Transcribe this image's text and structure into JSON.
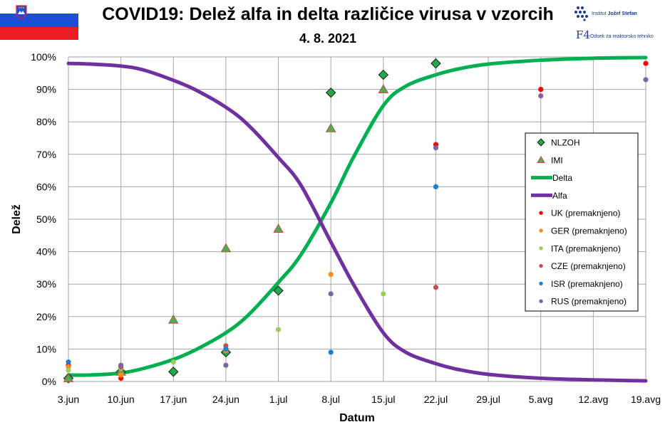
{
  "header": {
    "title": "COVID19: Delež alfa in delta različice virusa v vzorcih",
    "subtitle": "4. 8. 2021"
  },
  "institute": {
    "name_plain": "Institut ",
    "name_bold": "Jožef Stefan",
    "logo_mark": "F4",
    "department": "Odsek za reaktorsko tehniko"
  },
  "colors": {
    "delta": "#00b050",
    "alfa": "#7030a0",
    "nlzoh": "#23a84a",
    "imi": "#4caf50",
    "uk": "#ff0000",
    "ger": "#ff8c1a",
    "ita": "#9acd57",
    "cze": "#c0504d",
    "isr": "#1f7fd4",
    "rus": "#8064a2",
    "grid": "#a6a6a6"
  },
  "chart_data": {
    "type": "scatter+line",
    "title": "COVID19: Delež alfa in delta različice virusa v vzorcih",
    "xlabel": "Datum",
    "ylabel": "Delež",
    "x_unit": "days since 3.jun",
    "xlim": [
      0,
      77
    ],
    "ylim": [
      0,
      100
    ],
    "x_ticks": [
      {
        "x": 0,
        "label": "3.jun"
      },
      {
        "x": 7,
        "label": "10.jun"
      },
      {
        "x": 14,
        "label": "17.jun"
      },
      {
        "x": 21,
        "label": "24.jun"
      },
      {
        "x": 28,
        "label": "1.jul"
      },
      {
        "x": 35,
        "label": "8.jul"
      },
      {
        "x": 42,
        "label": "15.jul"
      },
      {
        "x": 49,
        "label": "22.jul"
      },
      {
        "x": 56,
        "label": "29.jul"
      },
      {
        "x": 63,
        "label": "5.avg"
      },
      {
        "x": 70,
        "label": "12.avg"
      },
      {
        "x": 77,
        "label": "19.avg"
      }
    ],
    "y_ticks": [
      {
        "y": 0,
        "label": "0%"
      },
      {
        "y": 10,
        "label": "10%"
      },
      {
        "y": 20,
        "label": "20%"
      },
      {
        "y": 30,
        "label": "30%"
      },
      {
        "y": 40,
        "label": "40%"
      },
      {
        "y": 50,
        "label": "50%"
      },
      {
        "y": 60,
        "label": "60%"
      },
      {
        "y": 70,
        "label": "70%"
      },
      {
        "y": 80,
        "label": "80%"
      },
      {
        "y": 90,
        "label": "90%"
      },
      {
        "y": 100,
        "label": "100%"
      }
    ],
    "legend_position": "right",
    "series": [
      {
        "name": "NLZOH",
        "kind": "marker",
        "marker": "diamond",
        "color_key": "nlzoh",
        "points": [
          [
            0,
            1
          ],
          [
            7,
            3
          ],
          [
            14,
            3
          ],
          [
            21,
            9
          ],
          [
            28,
            28
          ],
          [
            35,
            89
          ],
          [
            42,
            94.5
          ],
          [
            49,
            98
          ]
        ]
      },
      {
        "name": "IMI",
        "kind": "marker",
        "marker": "triangle",
        "color_key": "imi",
        "points": [
          [
            0,
            1
          ],
          [
            7,
            3
          ],
          [
            14,
            19
          ],
          [
            21,
            41
          ],
          [
            28,
            47
          ],
          [
            35,
            78
          ],
          [
            42,
            90
          ]
        ]
      },
      {
        "name": "Delta",
        "kind": "line",
        "color_key": "delta",
        "points": [
          [
            0,
            2
          ],
          [
            3,
            2
          ],
          [
            7,
            2.6
          ],
          [
            10,
            4
          ],
          [
            14,
            6.8
          ],
          [
            17,
            9.8
          ],
          [
            21,
            15
          ],
          [
            24,
            20.5
          ],
          [
            28,
            30.5
          ],
          [
            31,
            39
          ],
          [
            35,
            55
          ],
          [
            38,
            69
          ],
          [
            42,
            85
          ],
          [
            45,
            91
          ],
          [
            49,
            94.5
          ],
          [
            52,
            96.3
          ],
          [
            56,
            97.8
          ],
          [
            63,
            99
          ],
          [
            70,
            99.6
          ],
          [
            77,
            99.8
          ]
        ]
      },
      {
        "name": "Alfa",
        "kind": "line",
        "color_key": "alfa",
        "points": [
          [
            0,
            98
          ],
          [
            3,
            97.8
          ],
          [
            7,
            97.2
          ],
          [
            10,
            96
          ],
          [
            14,
            92.8
          ],
          [
            17,
            89.8
          ],
          [
            21,
            84.5
          ],
          [
            24,
            79
          ],
          [
            28,
            69
          ],
          [
            31,
            60.5
          ],
          [
            35,
            43
          ],
          [
            38,
            30
          ],
          [
            42,
            15
          ],
          [
            45,
            9
          ],
          [
            49,
            5.5
          ],
          [
            52,
            3.7
          ],
          [
            56,
            2.2
          ],
          [
            63,
            1
          ],
          [
            70,
            0.5
          ],
          [
            77,
            0.2
          ]
        ]
      },
      {
        "name": "UK (premaknjeno)",
        "kind": "marker",
        "marker": "circle",
        "color_key": "uk",
        "points": [
          [
            0,
            5
          ],
          [
            7,
            1
          ],
          [
            21,
            10
          ],
          [
            49,
            73
          ],
          [
            63,
            90
          ],
          [
            77,
            98
          ]
        ]
      },
      {
        "name": "GER (premaknjeno)",
        "kind": "marker",
        "marker": "circle",
        "color_key": "ger",
        "points": [
          [
            0,
            4.5
          ],
          [
            7,
            2
          ],
          [
            21,
            9.5
          ],
          [
            35,
            33
          ]
        ]
      },
      {
        "name": "ITA (premaknjeno)",
        "kind": "marker",
        "marker": "circle",
        "color_key": "ita",
        "points": [
          [
            0,
            3.5
          ],
          [
            7,
            4
          ],
          [
            14,
            6
          ],
          [
            28,
            16
          ],
          [
            42,
            27
          ]
        ]
      },
      {
        "name": "CZE (premaknjeno)",
        "kind": "marker",
        "marker": "circle",
        "color_key": "cze",
        "points": [
          [
            7,
            4.5
          ],
          [
            21,
            11
          ],
          [
            49,
            29
          ]
        ]
      },
      {
        "name": "ISR (premaknjeno)",
        "kind": "marker",
        "marker": "circle",
        "color_key": "isr",
        "points": [
          [
            0,
            6
          ],
          [
            21,
            10
          ],
          [
            35,
            9
          ],
          [
            49,
            60
          ]
        ]
      },
      {
        "name": "RUS (premaknjeno)",
        "kind": "marker",
        "marker": "circle",
        "color_key": "rus",
        "points": [
          [
            7,
            5
          ],
          [
            21,
            5
          ],
          [
            35,
            27
          ],
          [
            49,
            72
          ],
          [
            63,
            88
          ],
          [
            77,
            93
          ]
        ]
      }
    ]
  }
}
